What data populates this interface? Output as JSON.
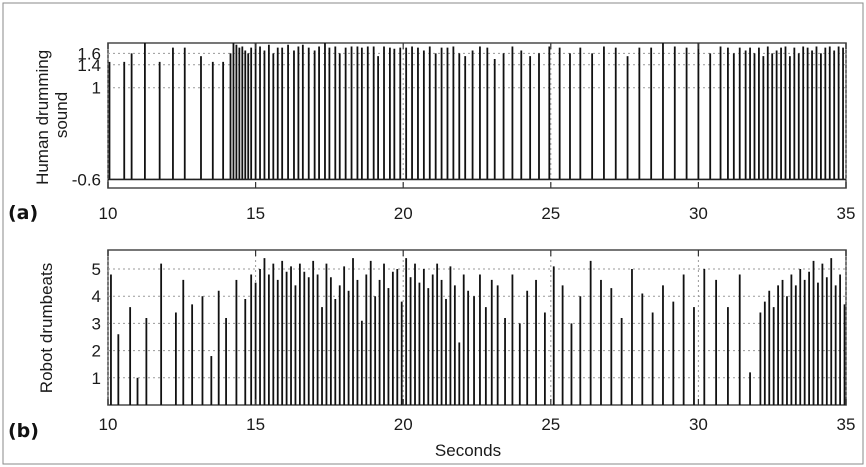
{
  "chart_data": [
    {
      "type": "bar",
      "panel_label": "(a)",
      "title": "",
      "ylabel_lines": [
        "Human drumming",
        "sound"
      ],
      "xlabel": "",
      "x_ticks": [
        10,
        15,
        20,
        25,
        30,
        35
      ],
      "y_ticks": [
        1.6,
        1.4,
        1.0,
        -0.6
      ],
      "xlim": [
        10,
        35
      ],
      "ylim": [
        -0.75,
        1.78
      ],
      "baseline": -0.6,
      "grid": true,
      "series": [
        {
          "x": [
            10.05,
            10.55,
            10.8,
            11.25,
            11.75,
            12.2,
            12.6,
            13.15,
            13.55,
            13.9,
            14.15,
            14.25,
            14.35,
            14.45,
            14.55,
            14.65,
            14.75,
            14.85,
            15.0,
            15.15,
            15.3,
            15.45,
            15.6,
            15.75,
            15.9,
            16.1,
            16.3,
            16.45,
            16.6,
            16.8,
            17.0,
            17.15,
            17.35,
            17.5,
            17.7,
            17.85,
            18.05,
            18.25,
            18.45,
            18.6,
            18.8,
            19.0,
            19.15,
            19.35,
            19.55,
            19.7,
            19.9,
            20.1,
            20.3,
            20.5,
            20.7,
            20.9,
            21.1,
            21.3,
            21.5,
            21.7,
            21.9,
            22.1,
            22.35,
            22.6,
            22.85,
            23.1,
            23.4,
            23.7,
            24.0,
            24.3,
            24.6,
            24.95,
            25.3,
            25.65,
            26.0,
            26.4,
            26.8,
            27.2,
            27.6,
            28.0,
            28.4,
            28.8,
            29.2,
            29.6,
            30.0,
            30.4,
            30.75,
            31.0,
            31.2,
            31.4,
            31.6,
            31.75,
            31.9,
            32.05,
            32.2,
            32.35,
            32.5,
            32.65,
            32.8,
            32.95,
            33.1,
            33.25,
            33.4,
            33.55,
            33.7,
            33.85,
            34.0,
            34.15,
            34.3,
            34.45,
            34.6,
            34.75,
            34.9
          ],
          "values": [
            1.45,
            1.45,
            1.6,
            1.78,
            1.45,
            1.7,
            1.7,
            1.55,
            1.45,
            1.45,
            1.6,
            1.78,
            1.75,
            1.7,
            1.72,
            1.65,
            1.6,
            1.7,
            1.78,
            1.72,
            1.65,
            1.75,
            1.6,
            1.7,
            1.7,
            1.75,
            1.65,
            1.72,
            1.75,
            1.7,
            1.65,
            1.72,
            1.78,
            1.7,
            1.72,
            1.6,
            1.7,
            1.72,
            1.72,
            1.7,
            1.72,
            1.72,
            1.55,
            1.72,
            1.7,
            1.68,
            1.7,
            1.7,
            1.72,
            1.7,
            1.65,
            1.72,
            1.6,
            1.7,
            1.7,
            1.72,
            1.6,
            1.55,
            1.65,
            1.72,
            1.7,
            1.5,
            1.6,
            1.72,
            1.65,
            1.55,
            1.6,
            1.72,
            1.7,
            1.6,
            1.7,
            1.6,
            1.72,
            1.7,
            1.55,
            1.7,
            1.7,
            1.78,
            1.72,
            1.7,
            1.78,
            1.6,
            1.72,
            1.7,
            1.6,
            1.7,
            1.65,
            1.7,
            1.6,
            1.7,
            1.55,
            1.72,
            1.6,
            1.65,
            1.7,
            1.72,
            1.55,
            1.7,
            1.6,
            1.72,
            1.7,
            1.65,
            1.72,
            1.6,
            1.7,
            1.72,
            1.65,
            1.72,
            1.7
          ]
        }
      ]
    },
    {
      "type": "bar",
      "panel_label": "(b)",
      "title": "",
      "ylabel_lines": [
        "Robot drumbeats"
      ],
      "xlabel": "Seconds",
      "x_ticks": [
        10,
        15,
        20,
        25,
        30,
        35
      ],
      "y_ticks": [
        1,
        2,
        3,
        4,
        5
      ],
      "xlim": [
        10,
        35
      ],
      "ylim": [
        0,
        5.7
      ],
      "baseline": 0,
      "grid": true,
      "series": [
        {
          "x": [
            10.1,
            10.35,
            10.75,
            11.0,
            11.3,
            11.8,
            12.3,
            12.55,
            12.85,
            13.2,
            13.5,
            13.75,
            14.0,
            14.35,
            14.65,
            14.85,
            15.0,
            15.15,
            15.3,
            15.45,
            15.6,
            15.75,
            15.9,
            16.05,
            16.2,
            16.35,
            16.5,
            16.65,
            16.8,
            16.95,
            17.1,
            17.25,
            17.4,
            17.55,
            17.7,
            17.85,
            18.0,
            18.15,
            18.3,
            18.45,
            18.6,
            18.75,
            18.9,
            19.05,
            19.2,
            19.35,
            19.5,
            19.65,
            19.8,
            19.95,
            20.1,
            20.25,
            20.4,
            20.55,
            20.7,
            20.85,
            21.0,
            21.15,
            21.3,
            21.45,
            21.6,
            21.75,
            21.9,
            22.05,
            22.2,
            22.4,
            22.6,
            22.8,
            23.0,
            23.2,
            23.45,
            23.7,
            23.95,
            24.2,
            24.5,
            24.8,
            25.1,
            25.4,
            25.7,
            26.0,
            26.35,
            26.7,
            27.05,
            27.4,
            27.75,
            28.1,
            28.45,
            28.8,
            29.15,
            29.5,
            29.85,
            30.2,
            30.6,
            31.0,
            31.4,
            31.75,
            32.1,
            32.25,
            32.4,
            32.55,
            32.7,
            32.85,
            33.0,
            33.15,
            33.3,
            33.45,
            33.6,
            33.75,
            33.9,
            34.05,
            34.2,
            34.35,
            34.5,
            34.65,
            34.8,
            34.95
          ],
          "values": [
            4.8,
            2.6,
            3.6,
            1.0,
            3.2,
            5.2,
            3.4,
            4.6,
            3.7,
            4.0,
            1.8,
            4.2,
            3.2,
            4.6,
            3.9,
            4.8,
            4.5,
            5.0,
            5.4,
            4.8,
            5.2,
            4.6,
            5.3,
            4.9,
            5.1,
            4.4,
            5.2,
            4.9,
            4.7,
            5.3,
            4.8,
            3.6,
            5.2,
            4.7,
            3.9,
            4.4,
            5.1,
            4.2,
            5.4,
            4.6,
            3.1,
            4.8,
            5.3,
            4.0,
            4.6,
            5.2,
            4.3,
            4.9,
            5.0,
            3.8,
            5.4,
            4.7,
            5.2,
            4.5,
            5.0,
            4.3,
            4.8,
            5.2,
            4.6,
            3.9,
            5.1,
            4.4,
            2.3,
            4.8,
            4.2,
            4.0,
            4.8,
            3.6,
            4.6,
            4.4,
            3.2,
            4.8,
            3.0,
            4.2,
            4.6,
            3.4,
            5.1,
            4.4,
            3.0,
            4.0,
            5.3,
            4.6,
            4.3,
            3.2,
            5.0,
            4.1,
            3.4,
            4.4,
            3.8,
            4.8,
            3.6,
            5.0,
            4.6,
            3.6,
            4.8,
            1.2,
            3.4,
            3.8,
            4.2,
            3.6,
            4.4,
            4.6,
            4.0,
            4.8,
            4.4,
            5.0,
            4.6,
            4.9,
            5.3,
            4.5,
            5.2,
            4.7,
            5.4,
            4.4,
            4.8,
            3.7
          ]
        }
      ]
    }
  ]
}
